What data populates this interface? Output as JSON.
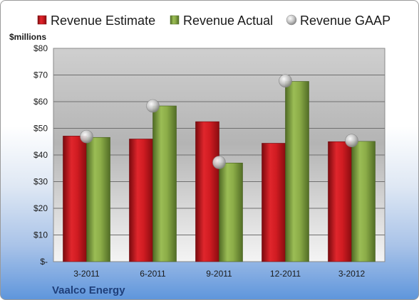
{
  "colors": {
    "estimate": "#c8161c",
    "actual": "#7f9f3e",
    "gaap_marker": "#c0c0c0",
    "company_text": "#1f3f7a"
  },
  "company": "Vaalco Energy",
  "chart_data": {
    "type": "bar",
    "categories": [
      "3-2011",
      "6-2011",
      "9-2011",
      "12-2011",
      "3-2012"
    ],
    "series": [
      {
        "name": "Revenue Estimate",
        "kind": "bar",
        "values": [
          47.1,
          46.0,
          52.5,
          44.4,
          45.0
        ]
      },
      {
        "name": "Revenue Actual",
        "kind": "bar",
        "values": [
          46.6,
          58.4,
          37.0,
          67.6,
          45.1
        ]
      },
      {
        "name": "Revenue GAAP",
        "kind": "marker",
        "values": [
          46.9,
          58.4,
          37.2,
          67.8,
          45.4
        ]
      }
    ],
    "ylabel": "$millions",
    "ylim": [
      0,
      80
    ],
    "yticks": [
      0,
      10,
      20,
      30,
      40,
      50,
      60,
      70,
      80
    ],
    "ytick_labels": [
      "$-",
      "$10",
      "$20",
      "$30",
      "$40",
      "$50",
      "$60",
      "$70",
      "$80"
    ],
    "grid": true,
    "legend_position": "top"
  }
}
